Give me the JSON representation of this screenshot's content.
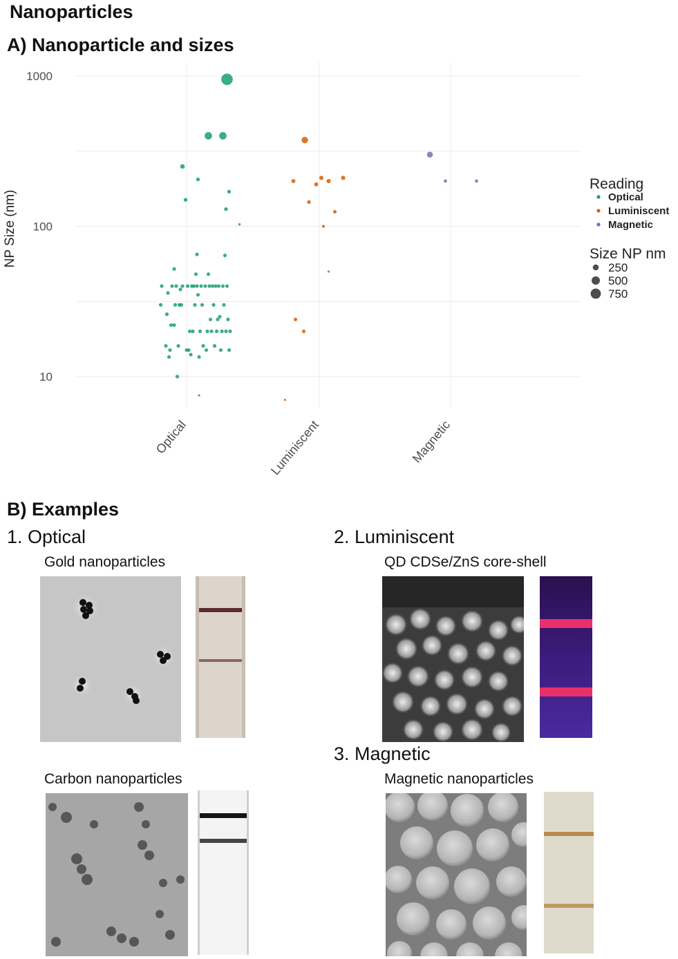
{
  "page": {
    "title": "Nanoparticles",
    "section_a": "A) Nanoparticle and sizes",
    "section_b": "B) Examples",
    "examples": {
      "optical_heading": "1. Optical",
      "luminescent_heading": "2. Luminiscent",
      "magnetic_heading": "3. Magnetic",
      "gold_caption": "Gold nanoparticles",
      "carbon_caption": "Carbon nanoparticles",
      "qd_caption": "QD CDSe/ZnS core-shell",
      "magnetic_caption": "Magnetic nanoparticles"
    }
  },
  "chart_data": {
    "type": "scatter",
    "title": "A) Nanoparticle and sizes",
    "ylabel": "NP Size (nm)",
    "xlabel": "",
    "y_scale": "log10",
    "ylim": [
      6,
      1100
    ],
    "y_ticks": [
      "10",
      "100",
      "1000"
    ],
    "categories": [
      "Optical",
      "Luminiscent",
      "Magnetic"
    ],
    "grid": true,
    "legend": {
      "position": "right",
      "color_title": "Reading",
      "size_title": "Size NP nm",
      "size_entries": [
        250,
        500,
        750
      ]
    },
    "series": [
      {
        "name": "Optical",
        "color": "#1b9e77",
        "points": [
          {
            "j": -0.25,
            "y": 30
          },
          {
            "j": -0.24,
            "y": 40
          },
          {
            "j": -0.2,
            "y": 16
          },
          {
            "j": -0.19,
            "y": 26
          },
          {
            "j": -0.18,
            "y": 36
          },
          {
            "j": -0.17,
            "y": 13.5
          },
          {
            "j": -0.16,
            "y": 15
          },
          {
            "j": -0.15,
            "y": 22
          },
          {
            "j": -0.14,
            "y": 40
          },
          {
            "j": -0.12,
            "y": 52
          },
          {
            "j": -0.11,
            "y": 30
          },
          {
            "j": -0.1,
            "y": 40
          },
          {
            "j": -0.08,
            "y": 16
          },
          {
            "j": -0.07,
            "y": 30
          },
          {
            "j": -0.06,
            "y": 38
          },
          {
            "j": -0.05,
            "y": 30
          },
          {
            "j": -0.04,
            "y": 40
          },
          {
            "j": -0.12,
            "y": 22
          },
          {
            "j": -0.09,
            "y": 10
          },
          {
            "j": 0.0,
            "y": 15
          },
          {
            "j": 0.01,
            "y": 40
          },
          {
            "j": 0.02,
            "y": 15
          },
          {
            "j": 0.03,
            "y": 20
          },
          {
            "j": 0.04,
            "y": 14
          },
          {
            "j": 0.05,
            "y": 40
          },
          {
            "j": 0.06,
            "y": 20
          },
          {
            "j": 0.07,
            "y": 40
          },
          {
            "j": 0.08,
            "y": 30
          },
          {
            "j": 0.09,
            "y": 48
          },
          {
            "j": 0.1,
            "y": 65
          },
          {
            "j": 0.1,
            "y": 40
          },
          {
            "j": 0.11,
            "y": 35
          },
          {
            "j": 0.12,
            "y": 13.5
          },
          {
            "j": 0.13,
            "y": 20
          },
          {
            "j": 0.14,
            "y": 40
          },
          {
            "j": 0.15,
            "y": 30
          },
          {
            "j": 0.16,
            "y": 16
          },
          {
            "j": 0.18,
            "y": 40
          },
          {
            "j": 0.19,
            "y": 15
          },
          {
            "j": 0.2,
            "y": 20
          },
          {
            "j": 0.21,
            "y": 48
          },
          {
            "j": 0.22,
            "y": 40
          },
          {
            "j": 0.23,
            "y": 24
          },
          {
            "j": 0.24,
            "y": 20
          },
          {
            "j": 0.25,
            "y": 40
          },
          {
            "j": 0.26,
            "y": 30
          },
          {
            "j": 0.27,
            "y": 16
          },
          {
            "j": 0.28,
            "y": 40
          },
          {
            "j": 0.29,
            "y": 20
          },
          {
            "j": 0.3,
            "y": 24
          },
          {
            "j": 0.31,
            "y": 40
          },
          {
            "j": 0.32,
            "y": 25
          },
          {
            "j": 0.33,
            "y": 15
          },
          {
            "j": 0.34,
            "y": 20
          },
          {
            "j": 0.35,
            "y": 40
          },
          {
            "j": 0.36,
            "y": 30
          },
          {
            "j": 0.37,
            "y": 64
          },
          {
            "j": 0.38,
            "y": 20
          },
          {
            "j": 0.39,
            "y": 40
          },
          {
            "j": 0.4,
            "y": 24
          },
          {
            "j": 0.41,
            "y": 15
          },
          {
            "j": 0.42,
            "y": 20
          },
          {
            "j": 0.12,
            "y": 7.5,
            "s": 2
          },
          {
            "j": -0.04,
            "y": 250,
            "s": 150
          },
          {
            "j": -0.01,
            "y": 150,
            "s": 100
          },
          {
            "j": 0.11,
            "y": 205,
            "s": 100
          },
          {
            "j": 0.21,
            "y": 400,
            "s": 400
          },
          {
            "j": 0.35,
            "y": 400,
            "s": 400
          },
          {
            "j": 0.38,
            "y": 130,
            "s": 100
          },
          {
            "j": 0.41,
            "y": 170,
            "s": 100
          },
          {
            "j": 0.51,
            "y": 103,
            "s": 40
          },
          {
            "j": 0.39,
            "y": 950,
            "s": 950
          }
        ]
      },
      {
        "name": "Luminiscent",
        "color": "#d95f02",
        "points": [
          {
            "j": -0.33,
            "y": 7,
            "s": 2
          },
          {
            "j": -0.25,
            "y": 200,
            "s": 120
          },
          {
            "j": -0.23,
            "y": 24
          },
          {
            "j": -0.15,
            "y": 20
          },
          {
            "j": -0.14,
            "y": 375,
            "s": 300
          },
          {
            "j": -0.1,
            "y": 145,
            "s": 100
          },
          {
            "j": -0.03,
            "y": 190,
            "s": 120
          },
          {
            "j": 0.02,
            "y": 210,
            "s": 130
          },
          {
            "j": 0.04,
            "y": 100,
            "s": 60
          },
          {
            "j": 0.09,
            "y": 200,
            "s": 130
          },
          {
            "j": 0.09,
            "y": 50,
            "s": 30
          },
          {
            "j": 0.15,
            "y": 125,
            "s": 90
          },
          {
            "j": 0.23,
            "y": 210,
            "s": 130
          }
        ]
      },
      {
        "name": "Magnetic",
        "color": "#7570b3",
        "points": [
          {
            "j": -0.2,
            "y": 300,
            "s": 250
          },
          {
            "j": -0.05,
            "y": 200,
            "s": 80
          },
          {
            "j": 0.25,
            "y": 200,
            "s": 80
          }
        ]
      }
    ]
  }
}
